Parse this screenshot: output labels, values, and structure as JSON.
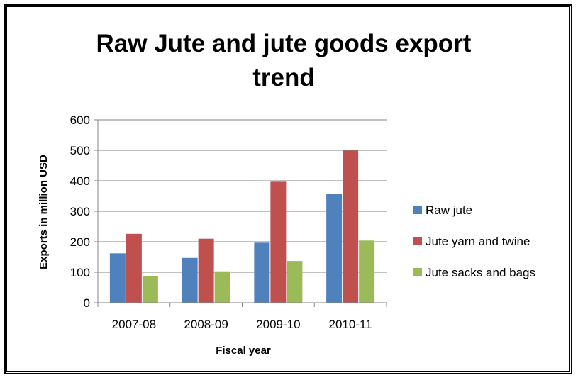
{
  "chart_data": {
    "type": "bar",
    "title": "Raw Jute and jute goods export trend",
    "xlabel": "Fiscal year",
    "ylabel": "Exports in million USD",
    "categories": [
      "2007-08",
      "2008-09",
      "2009-10",
      "2010-11"
    ],
    "ylim": [
      0,
      600
    ],
    "yticks": [
      0,
      100,
      200,
      300,
      400,
      500,
      600
    ],
    "grid": true,
    "legend_position": "right",
    "series": [
      {
        "name": "Raw jute",
        "color": "#4f81bd",
        "values": [
          162,
          147,
          197,
          358
        ]
      },
      {
        "name": "Jute yarn and twine",
        "color": "#c0504d",
        "values": [
          226,
          210,
          397,
          499
        ]
      },
      {
        "name": "Jute sacks and bags",
        "color": "#9bbb59",
        "values": [
          87,
          103,
          137,
          204
        ]
      }
    ]
  }
}
